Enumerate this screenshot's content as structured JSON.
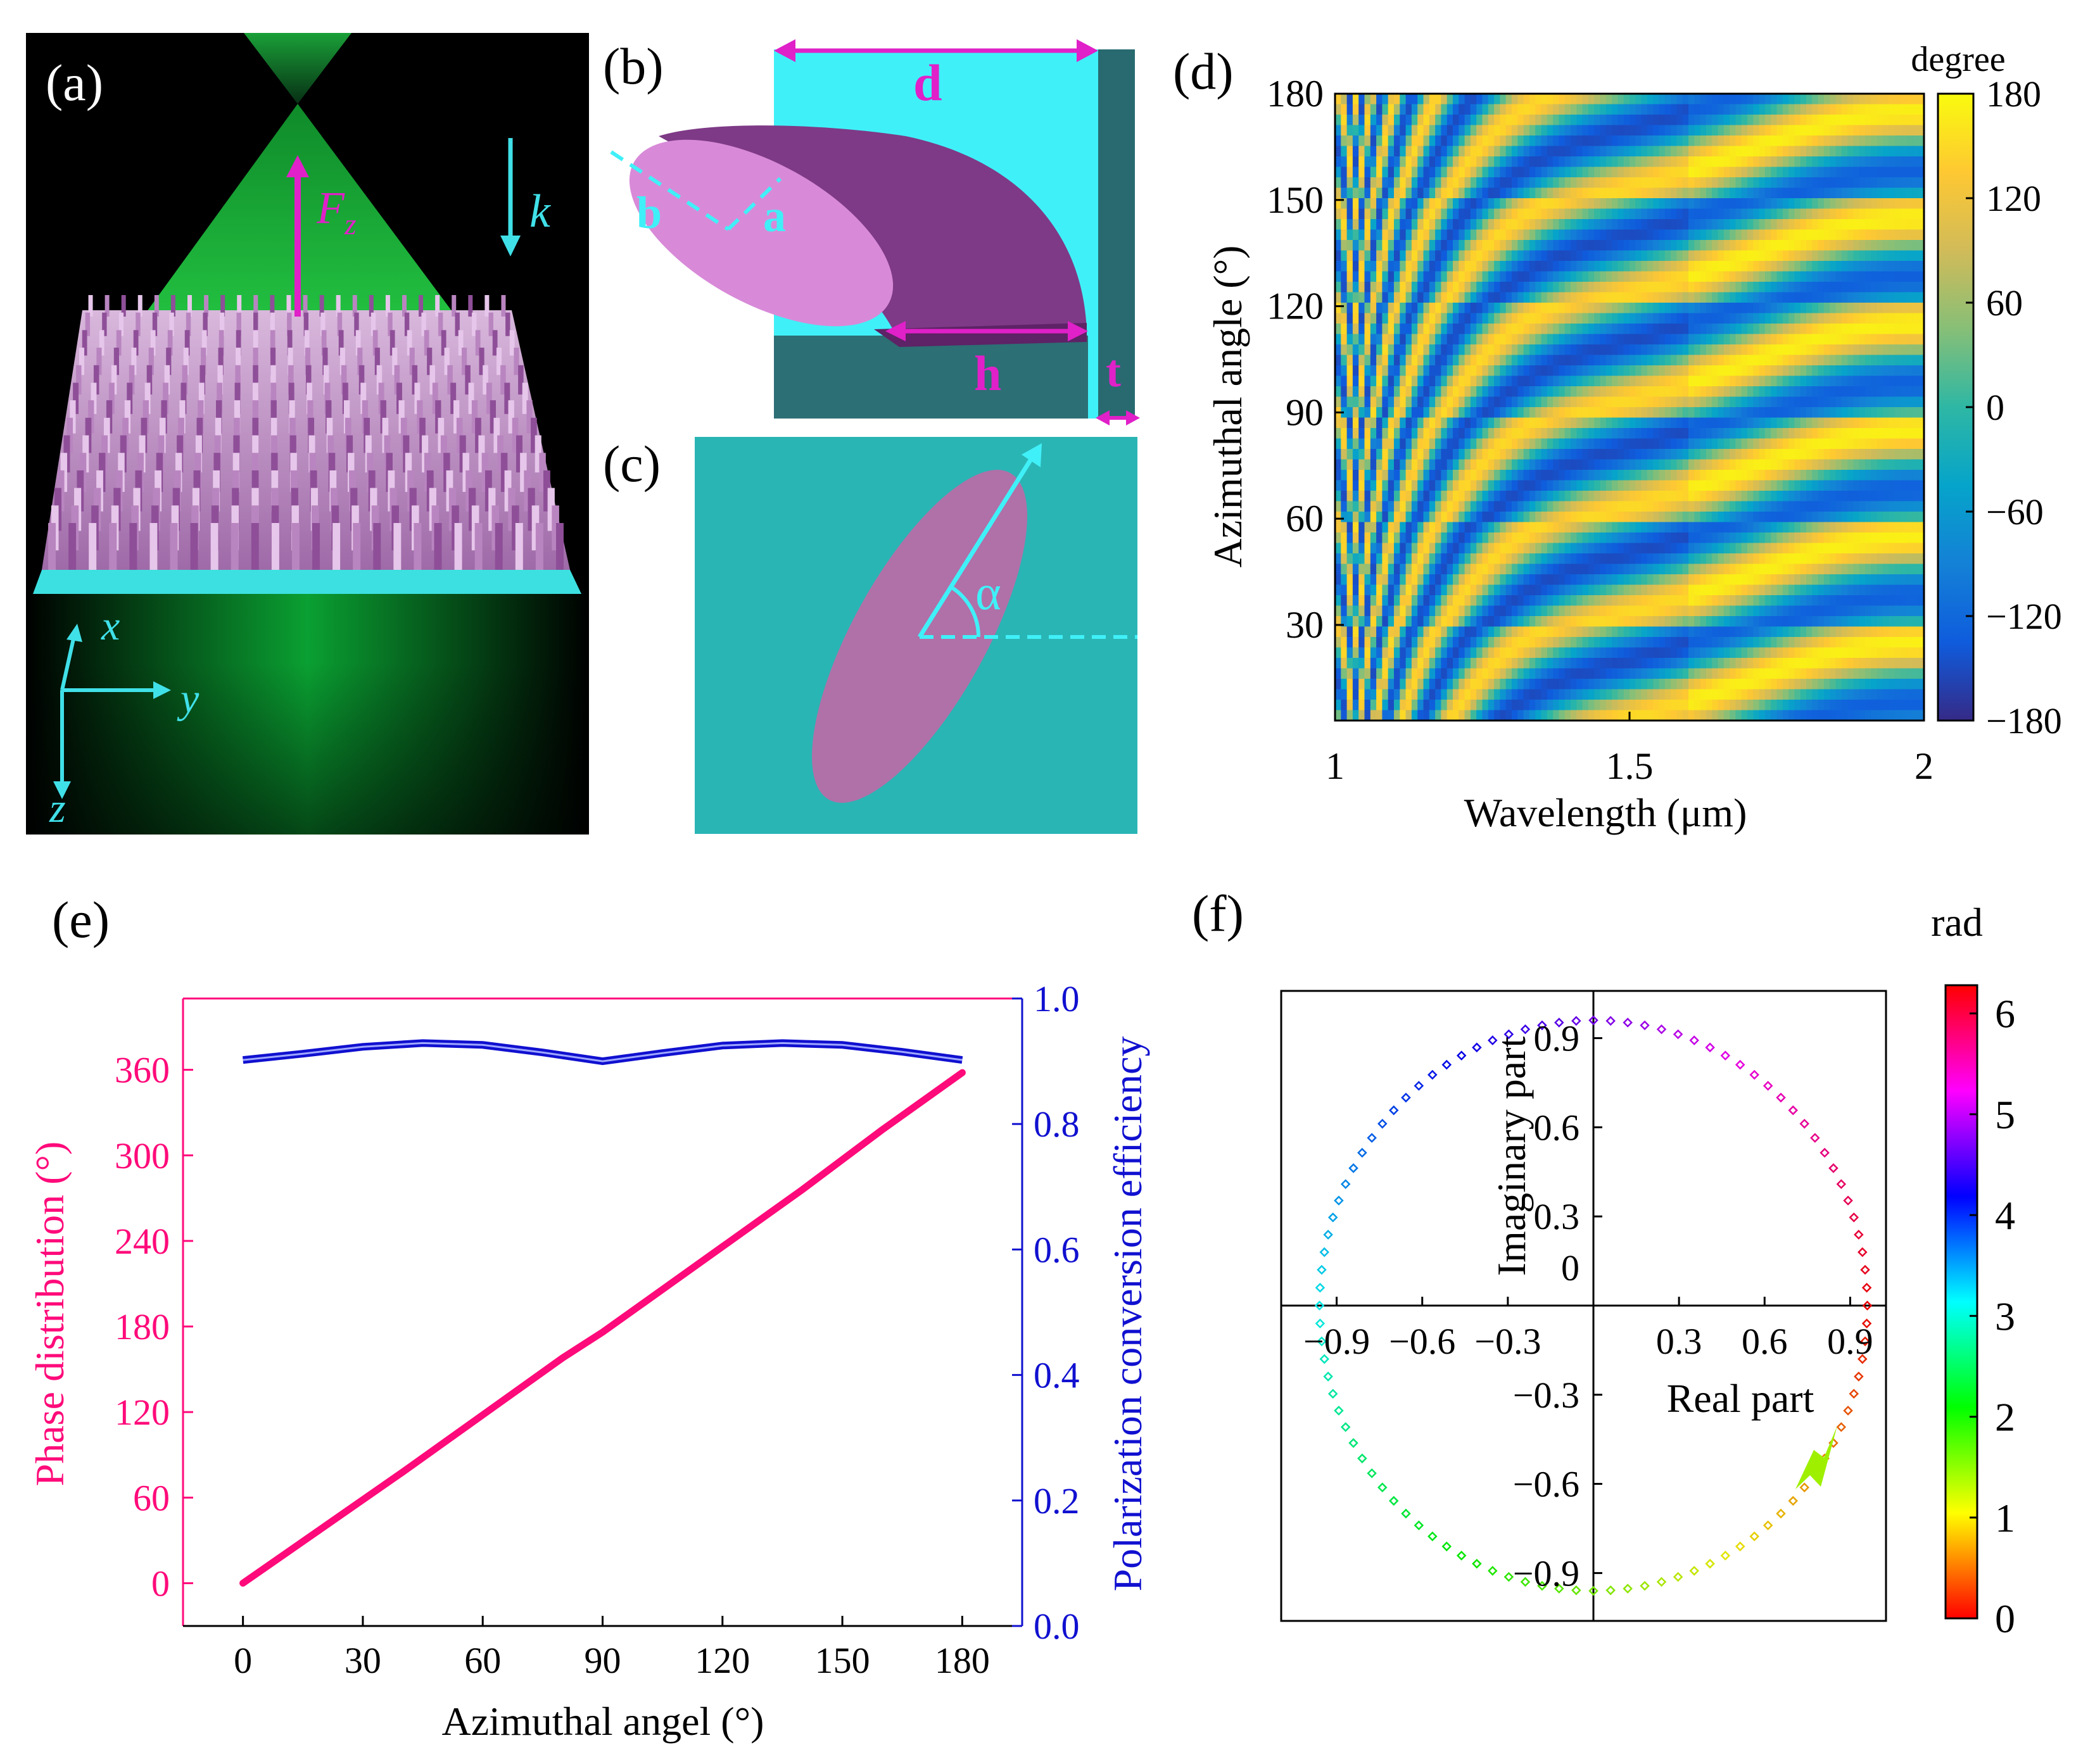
{
  "panels": {
    "a": {
      "label": "(a)",
      "force": "F",
      "force_sub": "z",
      "wave": "k",
      "axis_x": "x",
      "axis_y": "y",
      "axis_z": "z"
    },
    "b": {
      "label": "(b)",
      "d": "d",
      "a": "a",
      "b": "b",
      "h": "h",
      "t": "t"
    },
    "c": {
      "label": "(c)",
      "alpha": "α"
    },
    "d": {
      "label": "(d)"
    },
    "e": {
      "label": "(e)"
    },
    "f": {
      "label": "(f)"
    }
  },
  "colors": {
    "pink": "#ff0a7a",
    "magenta": "#e020c8",
    "cyan": "#40e8f0",
    "blue": "#1010d0",
    "teal": "#2ab5b5",
    "pillar": "#b070b0"
  },
  "chart_data": [
    {
      "id": "d",
      "type": "heatmap",
      "title": "",
      "xlabel": "Wavelength (μm)",
      "ylabel": "Azimuthal angle (°)",
      "xlim": [
        1,
        2
      ],
      "ylim": [
        3,
        180
      ],
      "x_ticks": [
        "1",
        "1.5",
        "2"
      ],
      "y_ticks": [
        "30",
        "60",
        "90",
        "120",
        "150",
        "180"
      ],
      "colorbar_title": "degree",
      "colorbar_ticks": [
        "180",
        "120",
        "60",
        "0",
        "−60",
        "−120",
        "−180"
      ],
      "colorbar_range": [
        -180,
        180
      ],
      "colormap": "parula",
      "value": "phase (degrees), 30° periodic in azimuthal angle"
    },
    {
      "id": "e",
      "type": "line",
      "xlabel": "Azimuthal angel  (°)",
      "ylabel_left": "Phase distribution (°)",
      "ylabel_right": "Polarization conversion efficiency",
      "xlim": [
        -15,
        195
      ],
      "ylim_left": [
        -30,
        410
      ],
      "ylim_right": [
        0,
        1
      ],
      "x_ticks": [
        "0",
        "30",
        "60",
        "90",
        "120",
        "150",
        "180"
      ],
      "y_ticks_left": [
        "0",
        "60",
        "120",
        "180",
        "240",
        "300",
        "360"
      ],
      "y_ticks_right": [
        "0.0",
        "0.2",
        "0.4",
        "0.6",
        "0.8",
        "1.0"
      ],
      "series": [
        {
          "name": "Phase distribution",
          "axis": "left",
          "x": [
            0,
            20,
            40,
            60,
            80,
            90,
            100,
            120,
            140,
            160,
            180
          ],
          "values": [
            0,
            39,
            78,
            118,
            158,
            176,
            196,
            236,
            276,
            318,
            358
          ]
        },
        {
          "name": "Polarization conversion efficiency",
          "axis": "right",
          "x": [
            0,
            15,
            30,
            45,
            60,
            75,
            90,
            105,
            120,
            135,
            150,
            165,
            180
          ],
          "values": [
            0.902,
            0.912,
            0.923,
            0.929,
            0.926,
            0.914,
            0.9,
            0.913,
            0.925,
            0.929,
            0.926,
            0.915,
            0.902
          ]
        }
      ]
    },
    {
      "id": "f",
      "type": "scatter",
      "xlabel": "Real part",
      "ylabel": "Imaginary part",
      "xlim": [
        -1.06,
        1.06
      ],
      "ylim": [
        -1.06,
        1.06
      ],
      "x_ticks": [
        "−0.9",
        "−0.6",
        "−0.3",
        "0.3",
        "0.6",
        "0.9"
      ],
      "y_ticks": [
        "0.9",
        "0.6",
        "0.3",
        "0",
        "−0.3",
        "−0.6",
        "−0.9"
      ],
      "radius": 0.96,
      "points": 100,
      "phase_range_rad": [
        0,
        6.28
      ],
      "colorbar_title": "rad",
      "colorbar_ticks": [
        "6",
        "5",
        "4",
        "3",
        "2",
        "1",
        "0"
      ]
    }
  ]
}
